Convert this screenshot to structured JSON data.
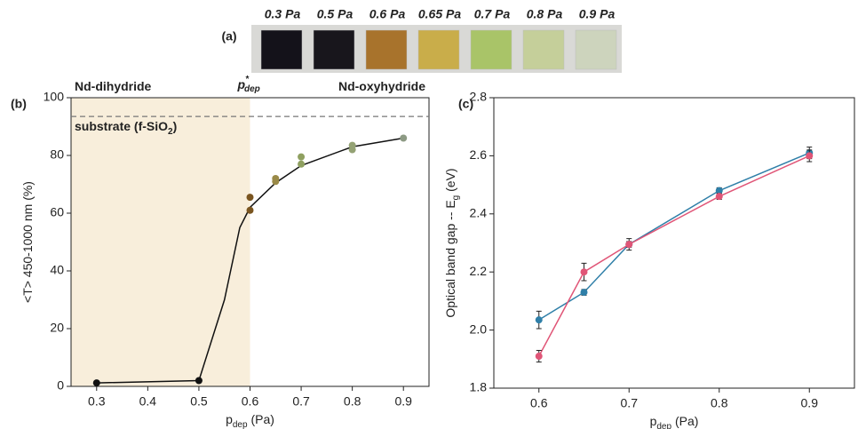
{
  "samples_panel": {
    "label": "(a)",
    "samples": [
      {
        "label": "0.3 Pa",
        "color": "#14121a"
      },
      {
        "label": "0.5 Pa",
        "color": "#18161c"
      },
      {
        "label": "0.6 Pa",
        "color": "#a8732c"
      },
      {
        "label": "0.65 Pa",
        "color": "#c9ad4a"
      },
      {
        "label": "0.7 Pa",
        "color": "#a9c468"
      },
      {
        "label": "0.8 Pa",
        "color": "#c5cf9a"
      },
      {
        "label": "0.9 Pa",
        "color": "#cdd4bd"
      }
    ]
  },
  "chart_data": [
    {
      "type": "scatter",
      "panel_label": "(b)",
      "x_label": {
        "text": "p",
        "sub": "dep",
        "after": " (Pa)"
      },
      "y_label": {
        "text": "<T> 450-1000 nm (%)"
      },
      "xlim": [
        0.25,
        0.95
      ],
      "xticks": [
        0.3,
        0.4,
        0.5,
        0.6,
        0.7,
        0.8,
        0.9
      ],
      "ylim": [
        0,
        100
      ],
      "yticks": [
        0,
        20,
        40,
        60,
        80,
        100
      ],
      "x": [
        0.3,
        0.5,
        0.6,
        0.6,
        0.65,
        0.65,
        0.7,
        0.7,
        0.8,
        0.8,
        0.9
      ],
      "values": [
        1.2,
        2,
        65.5,
        61,
        71,
        72,
        79.5,
        77,
        83.5,
        82,
        86
      ],
      "point_colors": [
        "#111111",
        "#111111",
        "#7a5520",
        "#7a5520",
        "#9a8a48",
        "#9a8a48",
        "#8fa060",
        "#8fa060",
        "#94a274",
        "#94a274",
        "#8d9a84"
      ],
      "curve": {
        "color": "#111111",
        "x": [
          0.3,
          0.5,
          0.55,
          0.58,
          0.6,
          0.65,
          0.7,
          0.8,
          0.9
        ],
        "values": [
          1.2,
          2,
          30,
          55,
          62,
          70.5,
          76.5,
          83,
          86
        ]
      },
      "shade_to": 0.6,
      "shade_color": "#f8eedb",
      "substrate_level": 93.5,
      "annotations": {
        "left_region": {
          "text": "Nd-dihydride"
        },
        "threshold": {
          "text": "p",
          "sup": "*",
          "sub": "dep"
        },
        "right_region": {
          "text": "Nd-oxyhydride"
        },
        "substrate": {
          "text": "substrate (f-SiO",
          "sub": "2",
          "after": ")"
        }
      }
    },
    {
      "type": "line",
      "panel_label": "(c)",
      "x_label": {
        "text": "p",
        "sub": "dep",
        "after": " (Pa)"
      },
      "y_label": {
        "text": "Optical band gap -- E",
        "sub": "g",
        "after": " (eV)"
      },
      "xlim": [
        0.55,
        0.95
      ],
      "xticks": [
        0.6,
        0.7,
        0.8,
        0.9
      ],
      "ylim": [
        1.8,
        2.8
      ],
      "yticks": [
        1.8,
        {
          "value": 2,
          "label": "2.0"
        },
        2.2,
        2.4,
        2.6,
        2.8
      ],
      "x": [
        0.6,
        0.65,
        0.7,
        0.8,
        0.9
      ],
      "series": [
        {
          "color": "#2f7fa8",
          "values": [
            2.035,
            2.13,
            2.295,
            2.48,
            2.61
          ],
          "errors": [
            0.03,
            0.01,
            0.01,
            0.01,
            0.02
          ]
        },
        {
          "color": "#e05577",
          "values": [
            1.91,
            2.2,
            2.295,
            2.46,
            2.6
          ],
          "errors": [
            0.02,
            0.03,
            0.02,
            0.01,
            0.02
          ]
        }
      ]
    }
  ]
}
